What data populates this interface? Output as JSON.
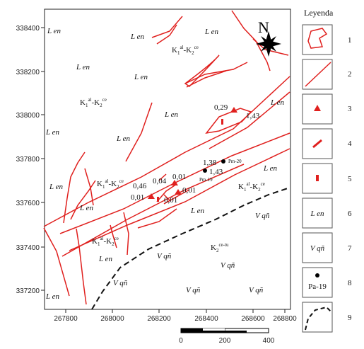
{
  "legend": {
    "title": "Leyenda",
    "items": [
      {
        "num": "1",
        "symbol": "polygon"
      },
      {
        "num": "2",
        "symbol": "fault-line"
      },
      {
        "num": "3",
        "symbol": "triangle"
      },
      {
        "num": "4",
        "symbol": "vein"
      },
      {
        "num": "5",
        "symbol": "small-rect"
      },
      {
        "num": "6",
        "symbol": "text",
        "text": "L en"
      },
      {
        "num": "7",
        "symbol": "text",
        "text": "V qñ"
      },
      {
        "num": "8",
        "symbol": "point",
        "text": "Pa-19"
      },
      {
        "num": "9",
        "symbol": "dashed-contact"
      }
    ]
  },
  "axes": {
    "x_ticks": [
      "267800",
      "268000",
      "268200",
      "268400",
      "268600",
      "268800"
    ],
    "y_ticks": [
      "338400",
      "338200",
      "338000",
      "337800",
      "337600",
      "337400",
      "337200"
    ]
  },
  "scalebar": {
    "labels": [
      "0",
      "200",
      "400"
    ]
  },
  "north": {
    "label": "N"
  },
  "units": {
    "Len": "L en",
    "Vqn": "V qñ",
    "Kal": {
      "main": "K",
      "s1": "1",
      "p1": "al",
      "dash": "-K",
      "s2": "2",
      "p2": "ce"
    },
    "Kcetu": {
      "main": "K",
      "s2": "2",
      "p2": "ce-tu"
    }
  },
  "samples": [
    {
      "id": "Pm-20",
      "value": "1,38"
    },
    {
      "id": "Pm-19",
      "value": "1,43"
    }
  ],
  "values": {
    "v029": "0,29",
    "v143a": "1,43",
    "v046": "0,46",
    "v004": "0,04",
    "v001a": "0,01",
    "v001b": "0,01",
    "v001c": "0,01",
    "v001d": "0,01"
  },
  "colors": {
    "fault": "#e0201e",
    "frame": "#222222",
    "contact": "#111111"
  }
}
